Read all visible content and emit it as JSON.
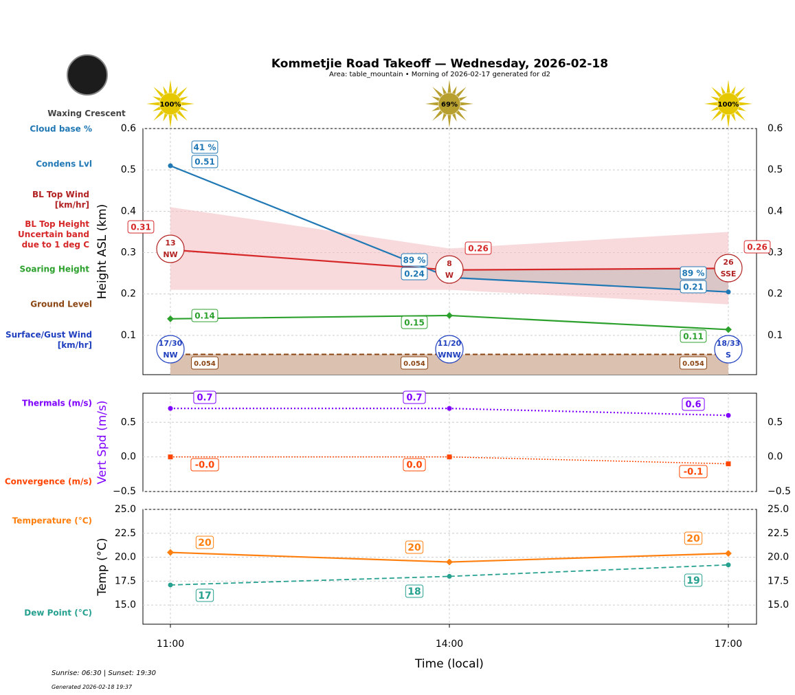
{
  "title": "Kommetjie Road Takeoff — Wednesday, 2026-02-18",
  "subtitle": "Area: table_mountain • Morning of 2026-02-17 generated for d2",
  "moon": {
    "phase": "Waxing Crescent"
  },
  "footer": {
    "sun": "Sunrise: 06:30 | Sunset: 19:30",
    "generated": "Generated 2026-02-18 19:37"
  },
  "colors": {
    "cloud": "#1f77b4",
    "bltop": "#d62728",
    "band": "#f4c2c4",
    "soaring": "#2ca02c",
    "ground": "#8b4513",
    "wind": "#1f3fbf",
    "thermal": "#7f00ff",
    "conv": "#ff4500",
    "temp": "#ff7f0e",
    "dew": "#26a08f"
  },
  "chart_data": [
    {
      "type": "line",
      "ylabel": "Height ASL (km)",
      "xticks": [
        "11:00",
        "14:00",
        "17:00"
      ],
      "ylim": [
        0.005,
        0.6
      ],
      "yticks": [
        "0.1",
        "0.2",
        "0.3",
        "0.4",
        "0.5",
        "0.6"
      ],
      "grid": true,
      "legend_labels": {
        "cloud_pct": "Cloud base %",
        "condens": "Condens Lvl",
        "bl_wind": "BL Top Wind [km/hr]",
        "bl_height": "BL Top Height Uncertain band due to 1 deg C",
        "soaring": "Soaring Height",
        "ground": "Ground Level",
        "surface_wind": "Surface/Gust Wind [km/hr]"
      },
      "sun": [
        "100%",
        "69%",
        "100%"
      ],
      "cloud_base": {
        "values": [
          0.51,
          0.24,
          0.205
        ],
        "labels": [
          "0.51",
          "0.24",
          "0.21"
        ],
        "pct": [
          "41 %",
          "89 %",
          "89 %"
        ]
      },
      "bl_top": {
        "values": [
          0.307,
          0.258,
          0.262
        ],
        "labels": [
          "0.31",
          "0.26",
          "0.26"
        ],
        "upper": [
          0.41,
          0.31,
          0.35
        ],
        "lower": [
          0.21,
          0.21,
          0.175
        ]
      },
      "bl_wind": [
        {
          "speed": "13",
          "dir": "NW"
        },
        {
          "speed": "8",
          "dir": "W"
        },
        {
          "speed": "26",
          "dir": "SSE"
        }
      ],
      "soaring": {
        "values": [
          0.14,
          0.148,
          0.114
        ],
        "labels": [
          "0.14",
          "0.15",
          "0.11"
        ]
      },
      "ground": {
        "value": 0.054,
        "labels": [
          "0.054",
          "0.054",
          "0.054"
        ]
      },
      "surface_wind": [
        {
          "speed": "17/30",
          "dir": "NW"
        },
        {
          "speed": "11/20",
          "dir": "WNW"
        },
        {
          "speed": "18/33",
          "dir": "S"
        }
      ]
    },
    {
      "type": "line",
      "ylabel": "Vert Spd (m/s)",
      "ylim": [
        -0.5,
        0.92
      ],
      "yticks": [
        "−0.5",
        "0.0",
        "0.5"
      ],
      "grid": true,
      "series": [
        {
          "name": "Thermals (m/s)",
          "values": [
            0.7,
            0.7,
            0.6
          ],
          "labels": [
            "0.7",
            "0.7",
            "0.6"
          ]
        },
        {
          "name": "Convergence (m/s)",
          "values": [
            0,
            0,
            -0.1
          ],
          "labels": [
            "-0.0",
            "0.0",
            "-0.1"
          ]
        }
      ]
    },
    {
      "type": "line",
      "ylabel": "Temp (°C)",
      "xlabel": "Time (local)",
      "ylim": [
        13,
        25
      ],
      "yticks": [
        "15.0",
        "17.5",
        "20.0",
        "22.5",
        "25.0"
      ],
      "grid": true,
      "series": [
        {
          "name": "Temperature (°C)",
          "values": [
            20.5,
            19.5,
            20.4
          ],
          "labels": [
            "20",
            "20",
            "20"
          ]
        },
        {
          "name": "Dew Point (°C)",
          "values": [
            17.1,
            18,
            19.2
          ],
          "labels": [
            "17",
            "18",
            "19"
          ]
        }
      ]
    }
  ]
}
